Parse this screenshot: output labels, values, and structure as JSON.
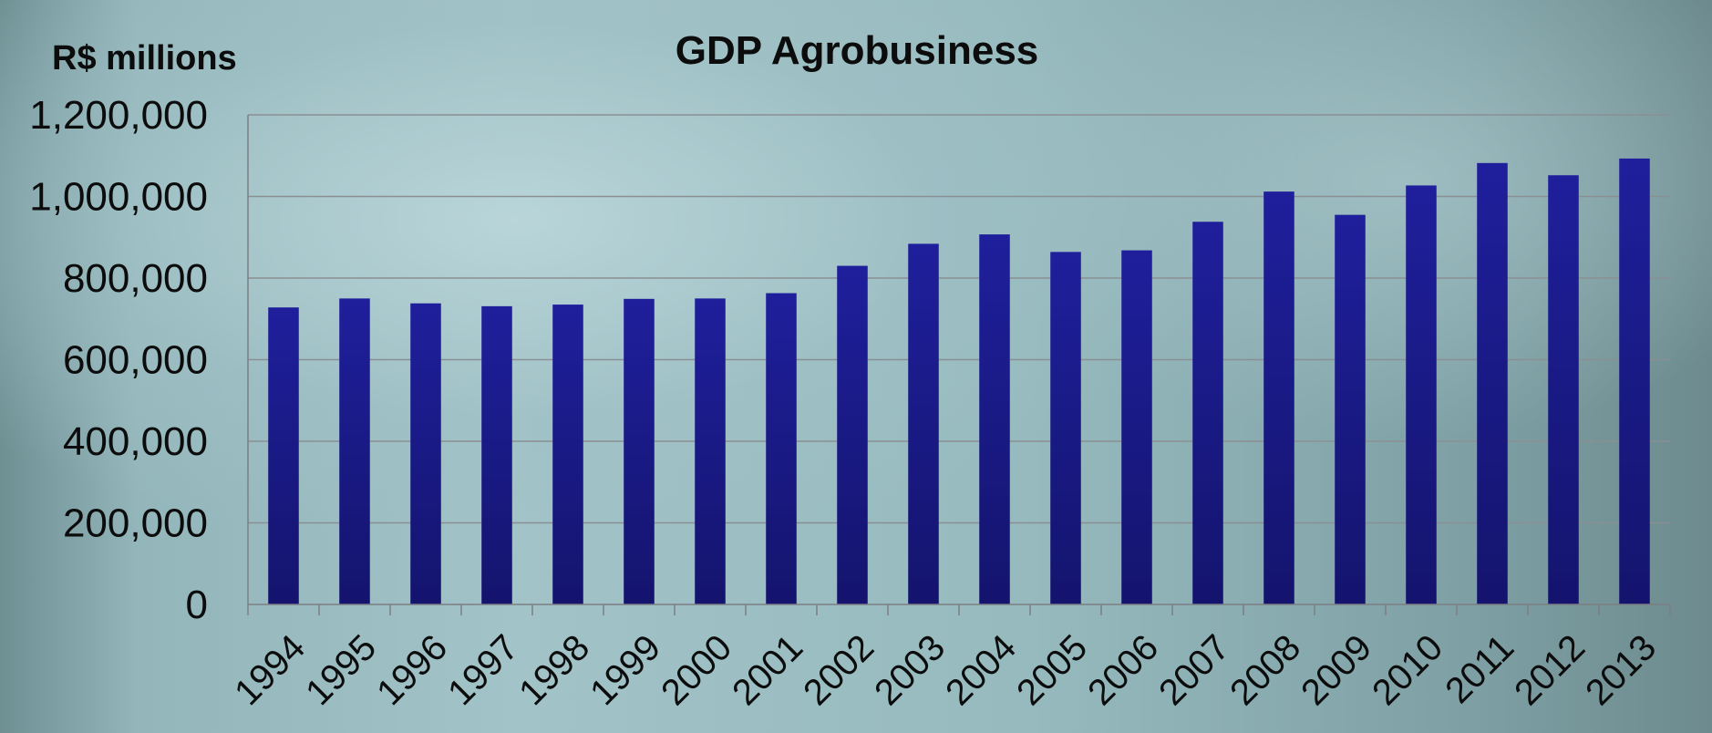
{
  "chart_data": {
    "type": "bar",
    "title": "GDP Agrobusiness",
    "ylabel": "R$ millions",
    "xlabel": "",
    "ylim": [
      0,
      1200000
    ],
    "yticks": [
      0,
      200000,
      400000,
      600000,
      800000,
      1000000,
      1200000
    ],
    "grid": true,
    "legend": "none",
    "categories": [
      "1994",
      "1995",
      "1996",
      "1997",
      "1998",
      "1999",
      "2000",
      "2001",
      "2002",
      "2003",
      "2004",
      "2005",
      "2006",
      "2007",
      "2008",
      "2009",
      "2010",
      "2011",
      "2012",
      "2013"
    ],
    "series": [
      {
        "values": [
          728000,
          750000,
          738000,
          731000,
          735000,
          749000,
          750000,
          763000,
          830000,
          884000,
          907000,
          864000,
          868000,
          938000,
          1012000,
          955000,
          1027000,
          1082000,
          1052000,
          1093000
        ]
      }
    ],
    "colors": {
      "bar_top": "#1f1f9c",
      "bar_bottom": "#14146e",
      "gridline": "#8a8f93",
      "axis": "#7a7f83"
    }
  }
}
